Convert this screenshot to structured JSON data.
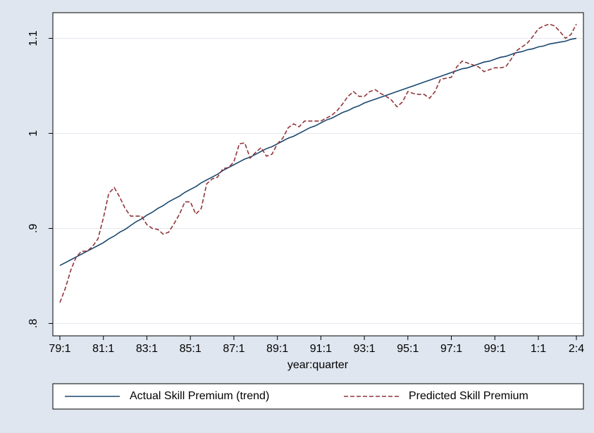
{
  "chart_data": {
    "type": "line",
    "xlabel": "year:quarter",
    "categories": [
      "79:1",
      null,
      null,
      null,
      null,
      null,
      null,
      null,
      "81:1",
      null,
      null,
      null,
      null,
      null,
      null,
      null,
      "83:1",
      null,
      null,
      null,
      null,
      null,
      null,
      null,
      "85:1",
      null,
      null,
      null,
      null,
      null,
      null,
      null,
      "87:1",
      null,
      null,
      null,
      null,
      null,
      null,
      null,
      "89:1",
      null,
      null,
      null,
      null,
      null,
      null,
      null,
      "91:1",
      null,
      null,
      null,
      null,
      null,
      null,
      null,
      "93:1",
      null,
      null,
      null,
      null,
      null,
      null,
      null,
      "95:1",
      null,
      null,
      null,
      null,
      null,
      null,
      null,
      "97:1",
      null,
      null,
      null,
      null,
      null,
      null,
      null,
      "99:1",
      null,
      null,
      null,
      null,
      null,
      null,
      null,
      "1:1",
      null,
      null,
      null,
      null,
      null,
      null,
      "2:4"
    ],
    "series": [
      {
        "name": "Actual Skill Premium (trend)",
        "color": "#1a476f",
        "dash": false,
        "values": [
          0.861,
          0.864,
          0.867,
          0.87,
          0.873,
          0.876,
          0.879,
          0.882,
          0.885,
          0.889,
          0.892,
          0.896,
          0.899,
          0.903,
          0.907,
          0.91,
          0.914,
          0.917,
          0.921,
          0.924,
          0.928,
          0.931,
          0.934,
          0.938,
          0.941,
          0.944,
          0.948,
          0.951,
          0.954,
          0.957,
          0.961,
          0.964,
          0.967,
          0.97,
          0.973,
          0.975,
          0.978,
          0.981,
          0.984,
          0.986,
          0.989,
          0.992,
          0.995,
          0.997,
          1.0,
          1.003,
          1.006,
          1.008,
          1.011,
          1.014,
          1.016,
          1.019,
          1.022,
          1.024,
          1.027,
          1.029,
          1.032,
          1.034,
          1.036,
          1.038,
          1.04,
          1.042,
          1.044,
          1.046,
          1.048,
          1.05,
          1.052,
          1.054,
          1.056,
          1.058,
          1.06,
          1.062,
          1.064,
          1.066,
          1.068,
          1.069,
          1.071,
          1.073,
          1.075,
          1.076,
          1.078,
          1.08,
          1.081,
          1.083,
          1.085,
          1.086,
          1.088,
          1.089,
          1.091,
          1.092,
          1.094,
          1.095,
          1.096,
          1.097,
          1.099,
          1.1
        ]
      },
      {
        "name": "Predicted Skill Premium",
        "color": "#90353b",
        "dash": true,
        "values": [
          0.822,
          0.837,
          0.856,
          0.87,
          0.876,
          0.876,
          0.881,
          0.889,
          0.911,
          0.937,
          0.943,
          0.933,
          0.921,
          0.913,
          0.913,
          0.913,
          0.904,
          0.9,
          0.899,
          0.894,
          0.896,
          0.905,
          0.915,
          0.928,
          0.928,
          0.915,
          0.921,
          0.947,
          0.952,
          0.954,
          0.963,
          0.964,
          0.97,
          0.989,
          0.99,
          0.974,
          0.98,
          0.985,
          0.976,
          0.978,
          0.989,
          0.995,
          1.006,
          1.01,
          1.007,
          1.013,
          1.013,
          1.013,
          1.013,
          1.016,
          1.019,
          1.024,
          1.031,
          1.039,
          1.044,
          1.039,
          1.039,
          1.044,
          1.046,
          1.042,
          1.039,
          1.035,
          1.028,
          1.033,
          1.044,
          1.042,
          1.041,
          1.041,
          1.037,
          1.044,
          1.057,
          1.058,
          1.059,
          1.07,
          1.076,
          1.074,
          1.072,
          1.07,
          1.065,
          1.067,
          1.069,
          1.069,
          1.07,
          1.078,
          1.087,
          1.091,
          1.095,
          1.102,
          1.11,
          1.113,
          1.115,
          1.113,
          1.107,
          1.1,
          1.104,
          1.115
        ]
      }
    ],
    "ylim": [
      0.787,
      1.127
    ],
    "yticks": [
      {
        "value": 0.8,
        "label": ".8"
      },
      {
        "value": 0.9,
        "label": ".9"
      },
      1,
      1.1
    ],
    "grid": true,
    "legend": "bottom"
  }
}
